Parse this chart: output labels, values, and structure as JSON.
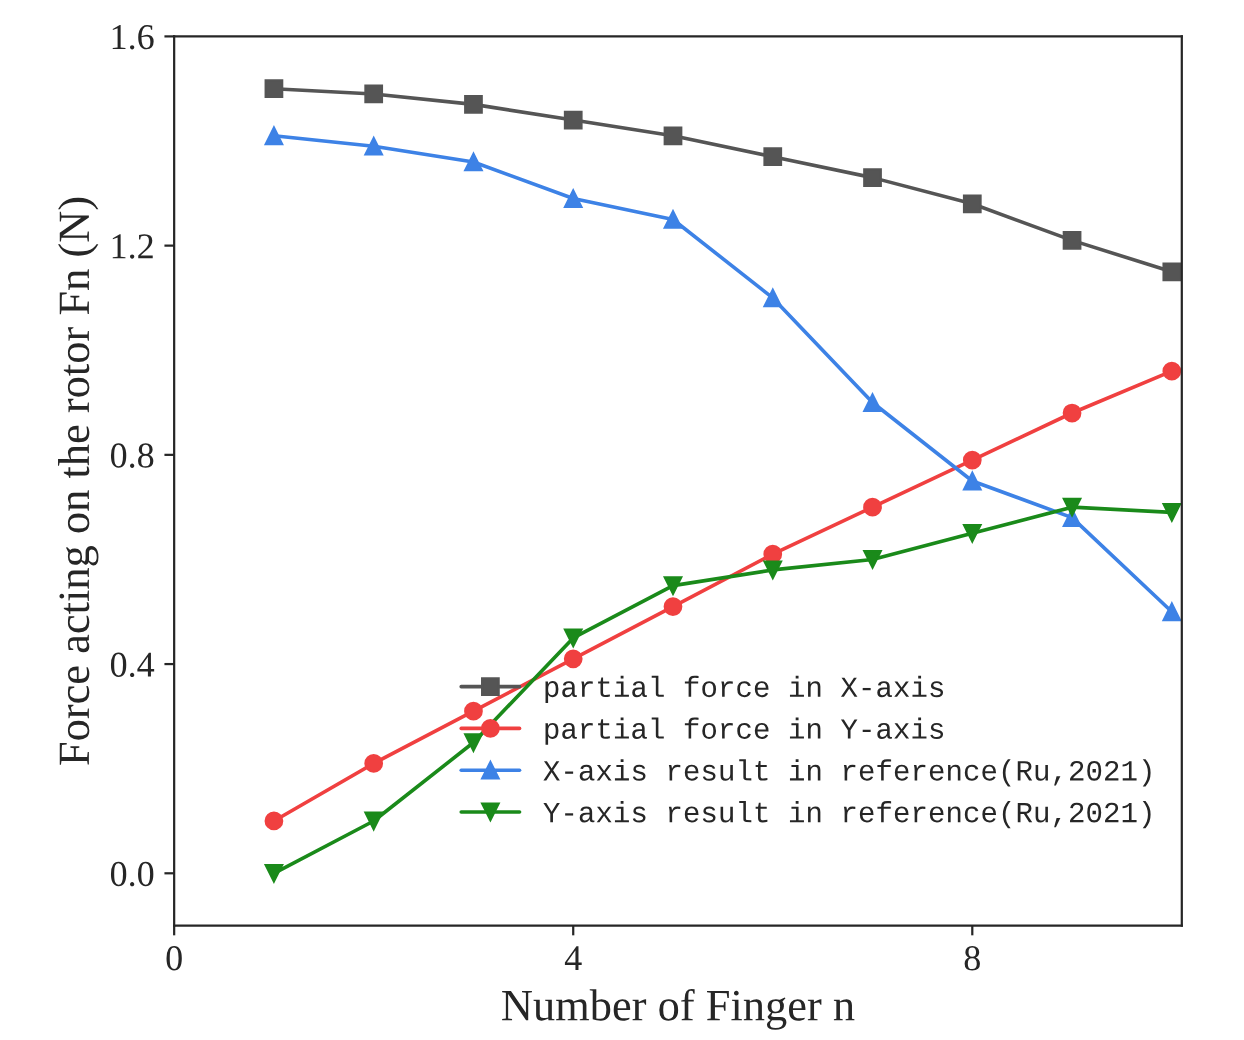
{
  "chart_data": {
    "type": "line",
    "xlabel": "Number of Finger n",
    "ylabel": "Force acting on the rotor Fn (N)",
    "x": [
      1,
      2,
      3,
      4,
      5,
      6,
      7,
      8,
      9,
      10
    ],
    "xlim": [
      0,
      10.1
    ],
    "xticks": [
      0,
      4,
      8
    ],
    "ylim": [
      -0.1,
      1.6
    ],
    "yticks": [
      {
        "value": 0,
        "label": "0.0"
      },
      0.4,
      0.8,
      1.2,
      1.6
    ],
    "grid": false,
    "legend": "bottom right",
    "series": [
      {
        "name": "partial force in X-axis",
        "color": "#555555",
        "marker": "square",
        "values": [
          1.5,
          1.49,
          1.47,
          1.44,
          1.41,
          1.37,
          1.33,
          1.28,
          1.21,
          1.15
        ]
      },
      {
        "name": "partial force in Y-axis",
        "color": "#f04040",
        "marker": "circle",
        "values": [
          0.1,
          0.21,
          0.31,
          0.41,
          0.51,
          0.61,
          0.7,
          0.79,
          0.88,
          0.96
        ]
      },
      {
        "name": "X-axis result in reference(Ru,2021)",
        "color": "#3d82e6",
        "marker": "triangle",
        "values": [
          1.41,
          1.39,
          1.36,
          1.29,
          1.25,
          1.1,
          0.9,
          0.75,
          0.68,
          0.5
        ]
      },
      {
        "name": "Y-axis result in reference(Ru,2021)",
        "color": "#1a8a1a",
        "marker": "triangle_down",
        "values": [
          0.0,
          0.1,
          0.25,
          0.45,
          0.55,
          0.58,
          0.6,
          0.65,
          0.7,
          0.69
        ]
      }
    ]
  }
}
